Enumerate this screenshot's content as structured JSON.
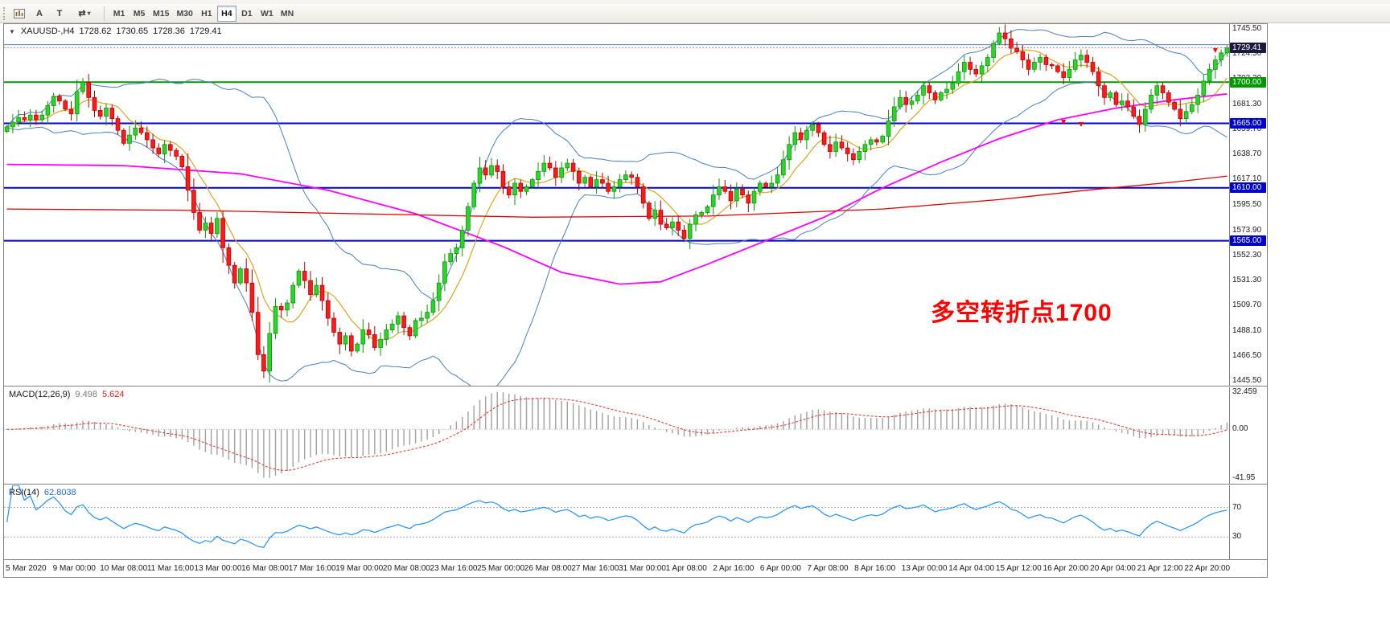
{
  "toolbar": {
    "tool_a": "A",
    "tool_t": "T",
    "timeframes": [
      "M1",
      "M5",
      "M15",
      "M30",
      "H1",
      "H4",
      "D1",
      "W1",
      "MN"
    ],
    "active_timeframe": "H4"
  },
  "icons": {
    "collapse": "▼",
    "cycle": "⇄",
    "caret": "▾"
  },
  "chart": {
    "symbol_tf": "XAUUSD-,H4",
    "open": "1728.62",
    "high": "1730.65",
    "low": "1728.36",
    "close": "1729.41",
    "annotation": "多空转折点1700"
  },
  "macd": {
    "label": "MACD(12,26,9)",
    "value_main": "9.498",
    "value_signal": "5.624",
    "params": {
      "fast": 12,
      "slow": 26,
      "signal": 9
    },
    "ticks": [
      {
        "v": 32.459,
        "label": "32.459"
      },
      {
        "v": 0,
        "label": "0.00"
      },
      {
        "v": -41.95,
        "label": "-41.95"
      }
    ]
  },
  "rsi": {
    "label": "RSI(14)",
    "value": "62.8038",
    "period": 14,
    "levels": [
      70,
      30
    ],
    "ticks": [
      {
        "v": 70,
        "label": "70"
      },
      {
        "v": 30,
        "label": "30"
      }
    ]
  },
  "price_axis": {
    "ticks": [
      "1745.50",
      "1724.50",
      "1703.30",
      "1681.30",
      "1659.70",
      "1638.70",
      "1617.10",
      "1595.50",
      "1573.90",
      "1552.30",
      "1531.30",
      "1509.70",
      "1488.10",
      "1466.50",
      "1445.50"
    ]
  },
  "time_axis": {
    "labels": [
      "5 Mar 2020",
      "9 Mar 00:00",
      "10 Mar 08:00",
      "11 Mar 16:00",
      "13 Mar 00:00",
      "16 Mar 08:00",
      "17 Mar 16:00",
      "19 Mar 00:00",
      "20 Mar 08:00",
      "23 Mar 16:00",
      "25 Mar 00:00",
      "26 Mar 08:00",
      "27 Mar 16:00",
      "31 Mar 00:00",
      "1 Apr 08:00",
      "2 Apr 16:00",
      "6 Apr 00:00",
      "7 Apr 08:00",
      "8 Apr 16:00",
      "13 Apr 00:00",
      "14 Apr 04:00",
      "15 Apr 12:00",
      "16 Apr 20:00",
      "20 Apr 04:00",
      "21 Apr 12:00",
      "22 Apr 20:00"
    ]
  },
  "levels": [
    {
      "price": 1732.0,
      "label": "",
      "color": "#4a7ebb",
      "width": 1,
      "badge": false
    },
    {
      "price": 1700.0,
      "label": "1700.00",
      "color": "#009900",
      "width": 2,
      "badge": true
    },
    {
      "price": 1665.0,
      "label": "1665.00",
      "color": "#0000CC",
      "width": 2,
      "badge": true
    },
    {
      "price": 1610.0,
      "label": "1610.00",
      "color": "#0000CC",
      "width": 2,
      "badge": true
    },
    {
      "price": 1565.0,
      "label": "1565.00",
      "color": "#0000CC",
      "width": 2,
      "badge": true
    }
  ],
  "current_price": {
    "value": 1729.41,
    "label": "1729.41",
    "badge_color": "#1a1a3c",
    "line_color": "#d07070"
  },
  "colors": {
    "bull_fill": "#2fd32f",
    "bull_stroke": "#089800",
    "bear_fill": "#ff1a1a",
    "bear_stroke": "#b80000",
    "bb": "#4a7ebb",
    "ma_fast": "#DAA520",
    "ma_mid": "#FF00FF",
    "ma_slow": "#E00000",
    "hist": "#a0a0a0",
    "signal": "#e03030",
    "rsi_line": "#1e90ff",
    "annotation": "#FF0000"
  },
  "chart_data": {
    "type": "candlestick",
    "symbol": "XAUUSD",
    "timeframe": "H4",
    "ohlc_current": [
      1728.62,
      1730.65,
      1728.36,
      1729.41
    ],
    "y_range": [
      1441.5,
      1749.5
    ],
    "bollinger": {
      "period": 20,
      "deviation": 2
    },
    "ma_fast_period": 8,
    "candles": {
      "first_open": 1658,
      "closes": [
        1662,
        1666,
        1670,
        1668,
        1672,
        1668,
        1672,
        1680,
        1688,
        1684,
        1677,
        1673,
        1692,
        1700,
        1687,
        1676,
        1671,
        1678,
        1669,
        1659,
        1648,
        1655,
        1661,
        1657,
        1651,
        1644,
        1639,
        1647,
        1642,
        1637,
        1628,
        1608,
        1589,
        1574,
        1580,
        1571,
        1584,
        1559,
        1544,
        1529,
        1541,
        1529,
        1504,
        1468,
        1454,
        1486,
        1509,
        1506,
        1512,
        1527,
        1539,
        1531,
        1519,
        1527,
        1514,
        1499,
        1487,
        1477,
        1484,
        1471,
        1477,
        1489,
        1485,
        1474,
        1481,
        1489,
        1494,
        1501,
        1491,
        1484,
        1497,
        1499,
        1504,
        1514,
        1529,
        1547,
        1554,
        1559,
        1574,
        1594,
        1614,
        1627,
        1621,
        1629,
        1624,
        1611,
        1604,
        1614,
        1607,
        1611,
        1617,
        1624,
        1631,
        1627,
        1619,
        1627,
        1631,
        1624,
        1614,
        1619,
        1611,
        1617,
        1614,
        1607,
        1611,
        1617,
        1621,
        1619,
        1611,
        1597,
        1584,
        1591,
        1579,
        1576,
        1581,
        1574,
        1567,
        1579,
        1587,
        1589,
        1594,
        1604,
        1611,
        1607,
        1599,
        1609,
        1604,
        1597,
        1607,
        1614,
        1611,
        1614,
        1621,
        1634,
        1647,
        1657,
        1651,
        1659,
        1664,
        1657,
        1647,
        1641,
        1649,
        1644,
        1639,
        1634,
        1641,
        1647,
        1651,
        1649,
        1654,
        1667,
        1679,
        1687,
        1681,
        1684,
        1689,
        1697,
        1691,
        1685,
        1691,
        1694,
        1699,
        1709,
        1717,
        1711,
        1707,
        1714,
        1721,
        1733,
        1742,
        1737,
        1729,
        1726,
        1719,
        1711,
        1717,
        1721,
        1715,
        1714,
        1709,
        1704,
        1711,
        1719,
        1723,
        1717,
        1709,
        1697,
        1687,
        1691,
        1681,
        1684,
        1679,
        1671,
        1664,
        1677,
        1689,
        1697,
        1691,
        1683,
        1677,
        1669,
        1675,
        1681,
        1689,
        1701,
        1711,
        1719,
        1725,
        1729.41
      ],
      "wick_overrides": {
        "13": {
          "high": 1703.5
        },
        "44": {
          "low": 1448.0
        },
        "170": {
          "high": 1747.0
        }
      }
    },
    "ma_mid_points": [
      [
        0,
        1630
      ],
      [
        20,
        1629
      ],
      [
        40,
        1622
      ],
      [
        55,
        1608
      ],
      [
        70,
        1588
      ],
      [
        85,
        1560
      ],
      [
        95,
        1538
      ],
      [
        105,
        1528
      ],
      [
        112,
        1530
      ],
      [
        120,
        1545
      ],
      [
        130,
        1565
      ],
      [
        140,
        1585
      ],
      [
        150,
        1610
      ],
      [
        160,
        1632
      ],
      [
        170,
        1652
      ],
      [
        180,
        1668
      ],
      [
        190,
        1678
      ],
      [
        200,
        1685
      ],
      [
        209,
        1690
      ]
    ],
    "ma_slow_points": [
      [
        0,
        1592
      ],
      [
        30,
        1591
      ],
      [
        60,
        1588
      ],
      [
        90,
        1585
      ],
      [
        120,
        1586
      ],
      [
        150,
        1592
      ],
      [
        170,
        1600
      ],
      [
        185,
        1608
      ],
      [
        200,
        1615
      ],
      [
        209,
        1620
      ]
    ],
    "markers": [
      {
        "index": 181,
        "price": 1666
      },
      {
        "index": 184,
        "price": 1664
      },
      {
        "index": 207,
        "price": 1727
      }
    ]
  }
}
